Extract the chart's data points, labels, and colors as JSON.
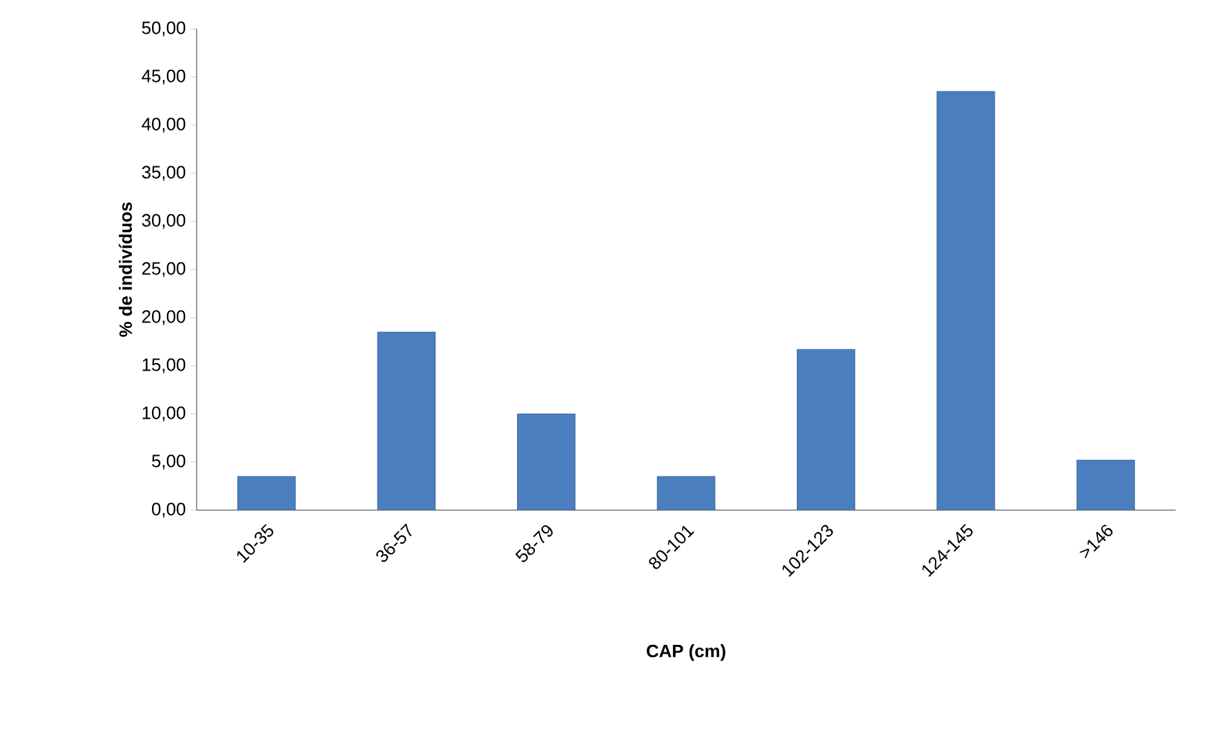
{
  "chart_data": {
    "type": "bar",
    "xlabel": "CAP (cm)",
    "ylabel": "% de indivíduos",
    "categories": [
      "10-35",
      "36-57",
      "58-79",
      "80-101",
      "102-123",
      "124-145",
      ">146"
    ],
    "values": [
      3.5,
      18.5,
      10,
      3.5,
      16.7,
      43.5,
      5.2
    ],
    "color": "#4a7ebf",
    "ylim": [
      0,
      50
    ],
    "yticks": [
      {
        "value": 0,
        "label": "0,00"
      },
      {
        "value": 5,
        "label": "5,00"
      },
      {
        "value": 10,
        "label": "10,00"
      },
      {
        "value": 15,
        "label": "15,00"
      },
      {
        "value": 20,
        "label": "20,00"
      },
      {
        "value": 25,
        "label": "25,00"
      },
      {
        "value": 30,
        "label": "30,00"
      },
      {
        "value": 35,
        "label": "35,00"
      },
      {
        "value": 40,
        "label": "40,00"
      },
      {
        "value": 45,
        "label": "45,00"
      },
      {
        "value": 50,
        "label": "50,00"
      }
    ],
    "grid": false
  }
}
